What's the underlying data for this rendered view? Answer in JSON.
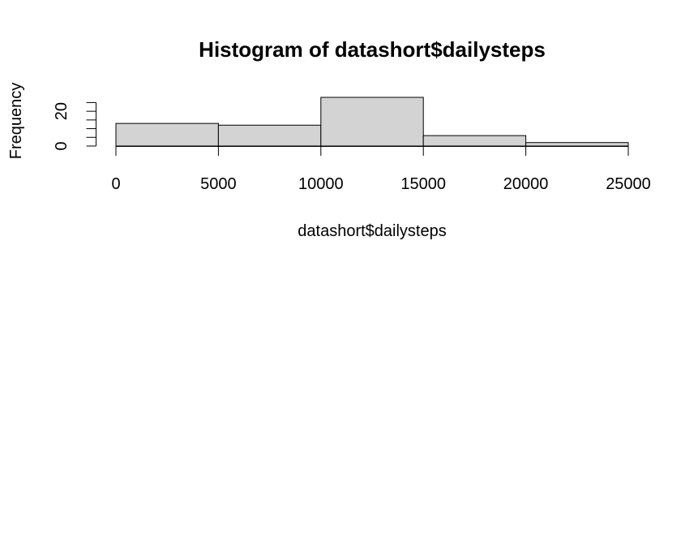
{
  "chart_data": {
    "type": "bar",
    "title": "Histogram of datashort$dailysteps",
    "xlabel": "datashort$dailysteps",
    "ylabel": "Frequency",
    "bins": [
      {
        "from": 0,
        "to": 5000,
        "count": 13
      },
      {
        "from": 5000,
        "to": 10000,
        "count": 12
      },
      {
        "from": 10000,
        "to": 15000,
        "count": 28
      },
      {
        "from": 15000,
        "to": 20000,
        "count": 6
      },
      {
        "from": 20000,
        "to": 25000,
        "count": 2
      }
    ],
    "x_ticks": [
      "0",
      "5000",
      "10000",
      "15000",
      "20000",
      "25000"
    ],
    "y_ticks": [
      "0",
      "20"
    ],
    "xlim": [
      0,
      25000
    ],
    "ylim": [
      0,
      28
    ],
    "bar_color": "#d3d3d3",
    "grid": false
  }
}
